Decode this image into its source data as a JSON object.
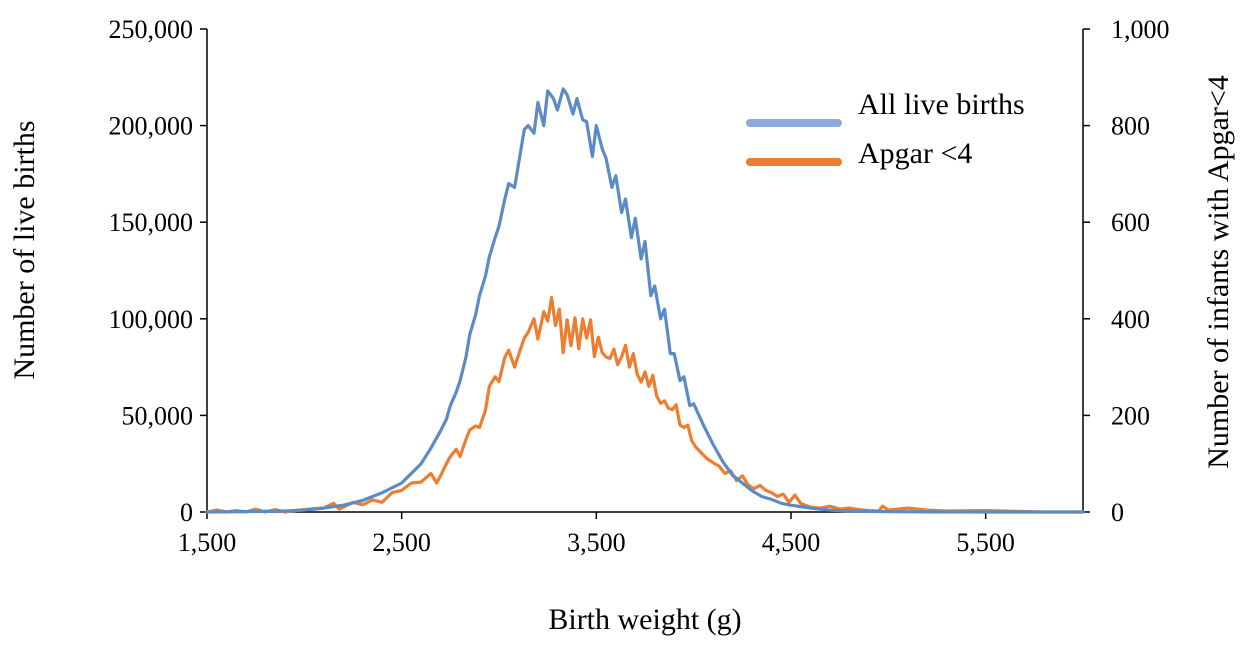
{
  "colors": {
    "all_live_births_line": "#5b8bc5",
    "all_live_births_legend": "#8eaadb",
    "apgar_line": "#ed7d31"
  },
  "chart_data": {
    "type": "line",
    "xlabel": "Birth weight (g)",
    "ylabel": "Number of live births",
    "y2label": "Number of infants  with Apgar<4",
    "xlim": [
      1500,
      6000
    ],
    "ylim": [
      0,
      250000
    ],
    "y2lim": [
      0,
      1000
    ],
    "x_tick_labels": [
      "1,500",
      "2,500",
      "3,500",
      "4,500",
      "5,500"
    ],
    "y_tick_labels": [
      "0",
      "50,000",
      "100,000",
      "150,000",
      "200,000",
      "250,000"
    ],
    "y2_tick_labels": [
      "0",
      "200",
      "400",
      "600",
      "800",
      "1,000"
    ],
    "grid": false,
    "legend_position": "top-right",
    "series": [
      {
        "name": "All live births",
        "axis": "left",
        "x": [
          1500,
          1700,
          1900,
          2000,
          2100,
          2200,
          2300,
          2400,
          2500,
          2550,
          2600,
          2650,
          2700,
          2730,
          2750,
          2780,
          2800,
          2830,
          2850,
          2880,
          2900,
          2930,
          2950,
          2980,
          3000,
          3030,
          3050,
          3080,
          3100,
          3130,
          3150,
          3180,
          3200,
          3230,
          3250,
          3280,
          3300,
          3330,
          3350,
          3380,
          3400,
          3430,
          3450,
          3480,
          3500,
          3530,
          3550,
          3580,
          3600,
          3630,
          3650,
          3680,
          3700,
          3730,
          3750,
          3780,
          3800,
          3830,
          3850,
          3880,
          3900,
          3930,
          3950,
          3980,
          4000,
          4050,
          4100,
          4150,
          4200,
          4250,
          4300,
          4350,
          4400,
          4450,
          4500,
          4600,
          4700,
          4800,
          4900,
          5000,
          5200,
          5500,
          6000
        ],
        "values": [
          0,
          200,
          500,
          1000,
          2000,
          3500,
          6000,
          10000,
          15000,
          20000,
          25000,
          33000,
          42000,
          48000,
          55000,
          62000,
          68000,
          80000,
          92000,
          102000,
          112000,
          122000,
          132000,
          142000,
          148000,
          162000,
          170000,
          168000,
          180000,
          198000,
          200000,
          196000,
          212000,
          200000,
          218000,
          214000,
          208000,
          219000,
          216000,
          206000,
          214000,
          203000,
          202000,
          184000,
          200000,
          188000,
          183000,
          168000,
          174000,
          155000,
          162000,
          142000,
          152000,
          131000,
          140000,
          112000,
          117000,
          100000,
          105000,
          82000,
          82000,
          68000,
          70000,
          55000,
          56000,
          45000,
          35000,
          26000,
          19000,
          15000,
          11000,
          8000,
          6500,
          4500,
          3500,
          2000,
          1000,
          500,
          300,
          150,
          50,
          0,
          0
        ]
      },
      {
        "name": "Apgar <4",
        "axis": "right",
        "x": [
          1500,
          1550,
          1600,
          1650,
          1700,
          1750,
          1800,
          1850,
          1900,
          1950,
          2000,
          2050,
          2100,
          2150,
          2180,
          2200,
          2250,
          2300,
          2350,
          2400,
          2450,
          2500,
          2550,
          2600,
          2650,
          2680,
          2700,
          2730,
          2750,
          2780,
          2800,
          2830,
          2850,
          2880,
          2900,
          2930,
          2950,
          2980,
          3000,
          3030,
          3050,
          3080,
          3100,
          3130,
          3150,
          3180,
          3200,
          3230,
          3250,
          3270,
          3290,
          3310,
          3330,
          3350,
          3370,
          3390,
          3410,
          3430,
          3450,
          3470,
          3490,
          3510,
          3530,
          3550,
          3570,
          3590,
          3610,
          3630,
          3650,
          3670,
          3690,
          3710,
          3730,
          3750,
          3770,
          3790,
          3810,
          3830,
          3850,
          3870,
          3890,
          3910,
          3930,
          3950,
          3970,
          3990,
          4010,
          4040,
          4070,
          4100,
          4130,
          4160,
          4190,
          4220,
          4250,
          4280,
          4310,
          4340,
          4370,
          4400,
          4430,
          4460,
          4490,
          4520,
          4550,
          4600,
          4650,
          4700,
          4750,
          4800,
          4850,
          4900,
          4950,
          4970,
          5000,
          5050,
          5100,
          5200,
          5300,
          5500,
          5800,
          6000
        ],
        "values": [
          0,
          4,
          0,
          3,
          0,
          6,
          0,
          5,
          0,
          3,
          5,
          7,
          8,
          18,
          6,
          10,
          20,
          15,
          25,
          20,
          40,
          45,
          60,
          62,
          80,
          60,
          75,
          100,
          115,
          130,
          115,
          150,
          170,
          178,
          175,
          210,
          260,
          280,
          270,
          320,
          335,
          300,
          325,
          360,
          372,
          400,
          358,
          415,
          395,
          444,
          386,
          420,
          330,
          398,
          344,
          402,
          338,
          400,
          360,
          398,
          322,
          362,
          330,
          321,
          318,
          337,
          305,
          321,
          345,
          300,
          328,
          285,
          269,
          290,
          260,
          283,
          240,
          225,
          230,
          215,
          212,
          222,
          180,
          175,
          180,
          148,
          135,
          122,
          110,
          102,
          95,
          80,
          85,
          65,
          75,
          56,
          48,
          55,
          45,
          40,
          32,
          37,
          20,
          35,
          18,
          10,
          8,
          12,
          6,
          8,
          5,
          3,
          2,
          12,
          4,
          6,
          8,
          4,
          2,
          3,
          0,
          0
        ]
      }
    ]
  }
}
